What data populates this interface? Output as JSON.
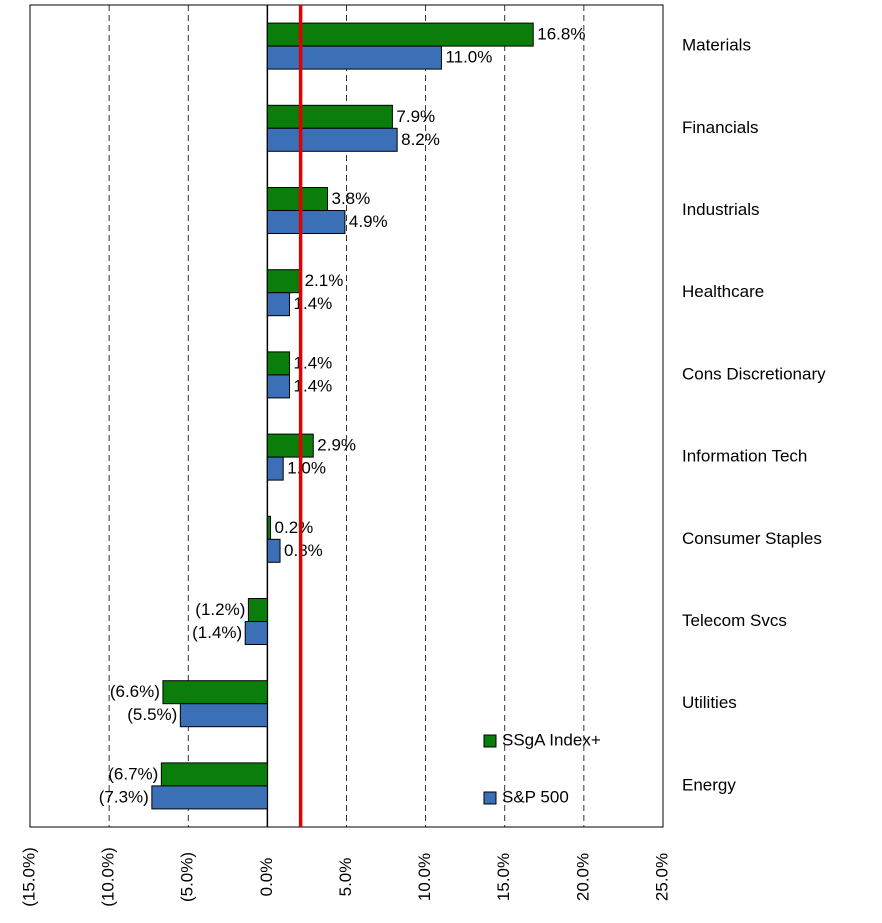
{
  "chart_data": {
    "type": "hbar",
    "categories": [
      "Materials",
      "Financials",
      "Industrials",
      "Healthcare",
      "Cons Discretionary",
      "Information Tech",
      "Consumer Staples",
      "Telecom Svcs",
      "Utilities",
      "Energy"
    ],
    "series": [
      {
        "name": "SSgA Index+",
        "color": "#0b7d0b",
        "values": [
          16.8,
          7.9,
          3.8,
          2.1,
          1.4,
          2.9,
          0.2,
          -1.2,
          -6.6,
          -6.7
        ],
        "value_labels": [
          "16.8%",
          "7.9%",
          "3.8%",
          "2.1%",
          "1.4%",
          "2.9%",
          "0.2%",
          "(1.2%)",
          "(6.6%)",
          "(6.7%)"
        ]
      },
      {
        "name": "S&P 500",
        "color": "#3b6fb6",
        "values": [
          11.0,
          8.2,
          4.9,
          1.4,
          1.4,
          1.0,
          0.8,
          -1.4,
          -5.5,
          -7.3
        ],
        "value_labels": [
          "11.0%",
          "8.2%",
          "4.9%",
          "1.4%",
          "1.4%",
          "1.0%",
          "0.8%",
          "(1.4%)",
          "(5.5%)",
          "(7.3%)"
        ]
      }
    ],
    "xlim": [
      -15,
      25
    ],
    "xticks": [
      {
        "value": -15,
        "label": "(15.0%)"
      },
      {
        "value": -10,
        "label": "(10.0%)"
      },
      {
        "value": -5,
        "label": "(5.0%)"
      },
      {
        "value": 0,
        "label": "0.0%"
      },
      {
        "value": 5,
        "label": "5.0%"
      },
      {
        "value": 10,
        "label": "10.0%"
      },
      {
        "value": 15,
        "label": "15.0%"
      },
      {
        "value": 20,
        "label": "20.0%"
      },
      {
        "value": 25,
        "label": "25.0%"
      }
    ],
    "grid": true,
    "reference_line": {
      "value": 2.1,
      "color": "#e00000"
    },
    "legend": "lower right"
  }
}
